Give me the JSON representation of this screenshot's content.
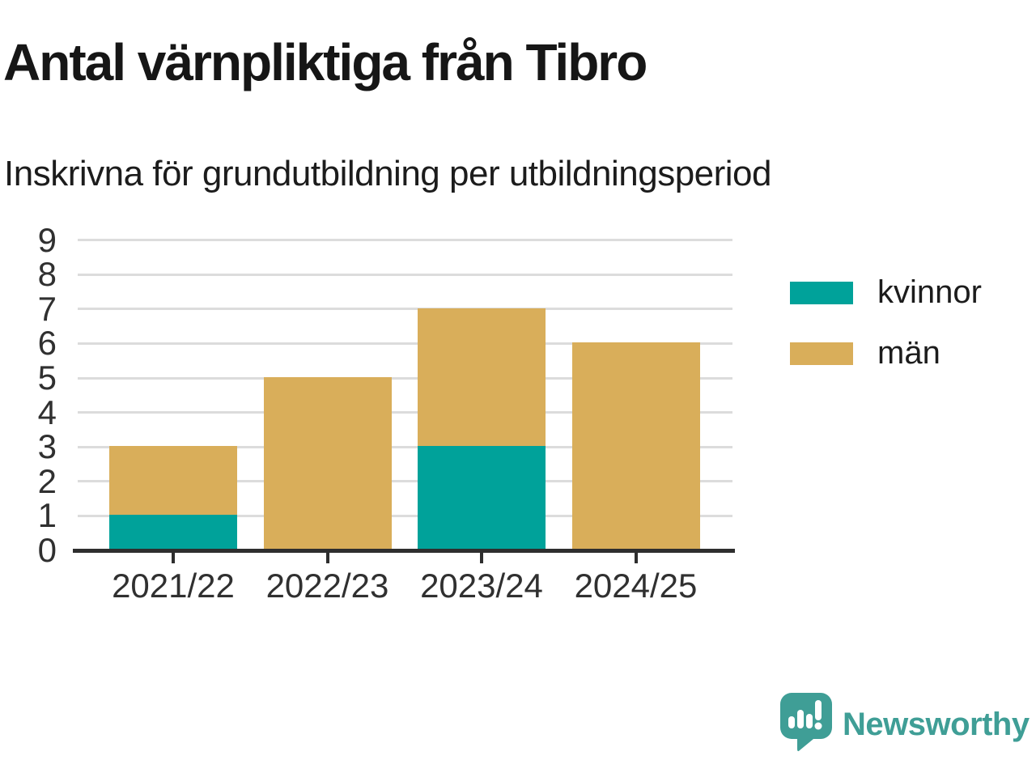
{
  "title": "Antal värnpliktiga från Tibro",
  "subtitle": "Inskrivna för grundutbildning per utbildningsperiod",
  "brand": {
    "name": "Newsworthy",
    "icon": "newsworthy-speech-bubble-bar-chart-icon",
    "color": "#3f9e96"
  },
  "chart_data": {
    "type": "bar",
    "stacked": true,
    "title": "Antal värnpliktiga från Tibro",
    "subtitle": "Inskrivna för grundutbildning per utbildningsperiod",
    "categories": [
      "2021/22",
      "2022/23",
      "2023/24",
      "2024/25"
    ],
    "series": [
      {
        "name": "kvinnor",
        "color": "#00a29a",
        "values": [
          1,
          0,
          3,
          0
        ]
      },
      {
        "name": "män",
        "color": "#d9ae5a",
        "values": [
          2,
          5,
          4,
          6
        ]
      }
    ],
    "stack_totals": [
      3,
      5,
      7,
      6
    ],
    "xlabel": "",
    "ylabel": "",
    "ylim": [
      0,
      9
    ],
    "yticks": [
      0,
      1,
      2,
      3,
      4,
      5,
      6,
      7,
      8,
      9
    ],
    "grid": true,
    "legend_position": "right",
    "colors": {
      "grid": "#dcdcdc",
      "axis": "#2e2e2e",
      "tick_text": "#303030"
    }
  }
}
